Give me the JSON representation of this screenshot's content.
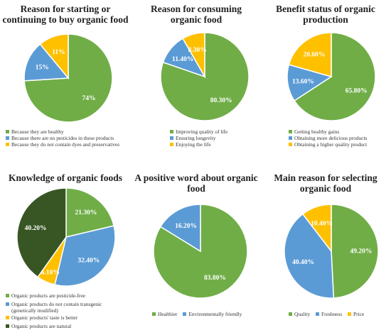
{
  "chart_data": [
    {
      "type": "pie",
      "title": "Reason for starting or continuing to buy organic food",
      "title_lines": [
        "Reason for starting or",
        "continuing to buy organic food"
      ],
      "labels": [
        "Because they are healthy",
        "Because there are no pesticides in these products",
        "Because they do not contain dyes and preservatives"
      ],
      "values": [
        74,
        15,
        11
      ],
      "value_labels": [
        "74%",
        "15%",
        "11%"
      ],
      "colors": [
        "#70ad47",
        "#5b9bd5",
        "#ffc000"
      ],
      "legend_placement": "bottom"
    },
    {
      "type": "pie",
      "title": "Reason for consuming organic food",
      "title_lines": [
        "Reason for consuming",
        "organic food"
      ],
      "labels": [
        "Improving quality of life",
        "Ensuring longevity",
        "Enjoying the life"
      ],
      "values": [
        80.3,
        11.4,
        8.3
      ],
      "value_labels": [
        "80.30%",
        "11.40%",
        "8.30%"
      ],
      "colors": [
        "#70ad47",
        "#5b9bd5",
        "#ffc000"
      ],
      "legend_placement": "bottom"
    },
    {
      "type": "pie",
      "title": "Benefit status of organic production",
      "title_lines": [
        "Benefit status of organic",
        "production"
      ],
      "labels": [
        "Getting healthy gains",
        "Obtaining more delicious products",
        "Obtaining a higher quality product"
      ],
      "values": [
        65.8,
        13.6,
        20.6
      ],
      "value_labels": [
        "65.80%",
        "13.60%",
        "20.60%"
      ],
      "colors": [
        "#70ad47",
        "#5b9bd5",
        "#ffc000"
      ],
      "legend_placement": "bottom"
    },
    {
      "type": "pie",
      "title": "Knowledge of organic foods",
      "title_lines": [
        "Knowledge of organic foods"
      ],
      "labels": [
        "Organic products are pesticide-free",
        "Organic products do not contain transgenic (genetically modified)",
        "Organic products' taste is better",
        "Organic products are natural"
      ],
      "values": [
        21.3,
        32.4,
        6.1,
        40.2
      ],
      "value_labels": [
        "21.30%",
        "32.40%",
        "6.10%",
        "40.20%"
      ],
      "colors": [
        "#70ad47",
        "#5b9bd5",
        "#ffc000",
        "#375623"
      ],
      "legend_placement": "bottom"
    },
    {
      "type": "pie",
      "title": "A positive word about organic food",
      "title_lines": [
        "A positive word about organic",
        "food"
      ],
      "labels": [
        "Healthier",
        "Environmentally friendly"
      ],
      "values": [
        83.8,
        16.2
      ],
      "value_labels": [
        "83.80%",
        "16.20%"
      ],
      "colors": [
        "#70ad47",
        "#5b9bd5"
      ],
      "legend_placement": "bottom"
    },
    {
      "type": "pie",
      "title": "Main reason for selecting organic food",
      "title_lines": [
        "Main reason for selecting",
        "organic food"
      ],
      "labels": [
        "Quality",
        "Freshness",
        "Price"
      ],
      "values": [
        49.2,
        40.4,
        10.4
      ],
      "value_labels": [
        "49.20%",
        "40.40%",
        "10.40%"
      ],
      "colors": [
        "#70ad47",
        "#5b9bd5",
        "#ffc000"
      ],
      "legend_placement": "bottom"
    }
  ]
}
